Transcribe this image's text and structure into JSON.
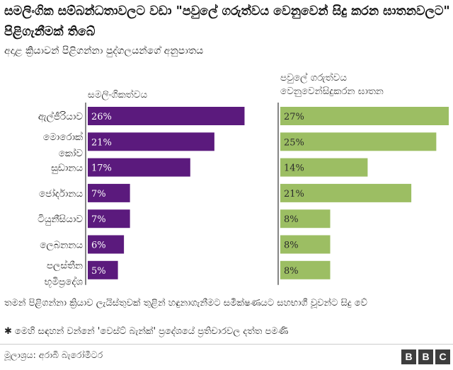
{
  "title": "සමලිංගික සම්බන්ධතාවලට වඩා \"පවුලේ ගරුත්වය වෙනුවෙන් සිදු කරන ඝාතනවලට\" පිළිගැනීමක් තිබේ",
  "subtitle": "අදාළ ක්‍රියාවන් පිළිගන්නා පුද්ගලයන්ගේ අනුපාතය",
  "note": "තමන් පිළිගන්නා ක්‍රියාව ලැයිස්තුවක් තුළින් හඳුනාගැනීමට සමීක්ෂණයට සහභාගී වූවන්ට සිදු වේ",
  "footnote": "මෙහි සඳහන් වන්නේ 'වෙස්ට් බැන්ක්' ප්‍රදේශයේ ප්‍රතිචාරවල දත්ත පමණි",
  "footnote_marker": "✱",
  "source": "මූලාශ්‍රය: අරාබි බැරෝමීටර",
  "logo_letters": [
    "B",
    "B",
    "C"
  ],
  "chart_data": {
    "type": "bar",
    "orientation": "horizontal",
    "categories": [
      [
        "ඇල්ජීරියාව"
      ],
      [
        "මොරොක්",
        "කෝව"
      ],
      [
        "සුඩානය"
      ],
      [
        "ජෝර්දානය"
      ],
      [
        "ටියුනීසියාව"
      ],
      [
        "ලෙබනනය"
      ],
      [
        "පලස්තීන",
        "භූමිප්‍රදේශ"
      ]
    ],
    "value_suffix": "%",
    "series": [
      {
        "name": "සමලිංගිකත්වය",
        "color": "#5b1a7d",
        "values": [
          26,
          21,
          17,
          7,
          7,
          6,
          5
        ]
      },
      {
        "name_lines": [
          "පවුලේ ගරුත්වය",
          "වෙනුවෙන්සිදුකරන ඝාතන"
        ],
        "color": "#9cbe63",
        "values": [
          27,
          25,
          14,
          21,
          8,
          8,
          8
        ]
      }
    ],
    "xlim": [
      0,
      27
    ]
  }
}
